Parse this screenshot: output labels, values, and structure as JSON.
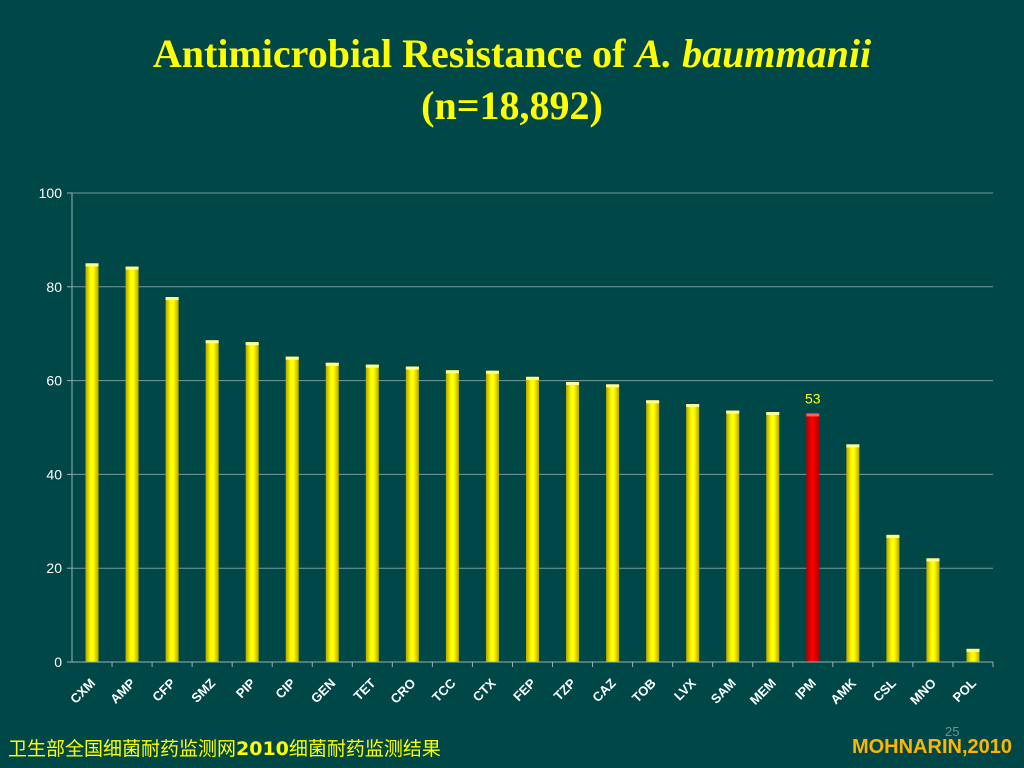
{
  "title": {
    "line1_prefix": "Antimicrobial Resistance of ",
    "genus": "A.",
    "species": "baummanii",
    "line2": "(n=18,892)"
  },
  "footer": {
    "left_a": "卫生部全国细菌耐药监测网",
    "left_year": "2010",
    "left_b": "细菌耐药监测结果",
    "right": "MOHNARIN,2010",
    "page_number": "25"
  },
  "colors": {
    "background": "#004848",
    "bar": "#FFFF00",
    "highlight_bar": "#FF0000",
    "title": "#FFFF00",
    "axis_text": "#FFFFFF",
    "highlight_label": "#FFFF00",
    "footer_right": "#FFB400"
  },
  "chart_data": {
    "type": "bar",
    "categories": [
      "CXM",
      "AMP",
      "CFP",
      "SMZ",
      "PIP",
      "CIP",
      "GEN",
      "TET",
      "CRO",
      "TCC",
      "CTX",
      "FEP",
      "TZP",
      "CAZ",
      "TOB",
      "LVX",
      "SAM",
      "MEM",
      "IPM",
      "AMK",
      "CSL",
      "MNO",
      "POL"
    ],
    "values": [
      85,
      84.3,
      77.8,
      68.6,
      68.2,
      65.1,
      63.8,
      63.4,
      63,
      62.2,
      62.1,
      60.8,
      59.7,
      59.2,
      55.8,
      55,
      53.6,
      53.3,
      53,
      46.4,
      27.1,
      22.1,
      2.8
    ],
    "highlight_index": 18,
    "data_labels": [
      {
        "index": 18,
        "text": "53"
      }
    ],
    "ylim": [
      0,
      100
    ],
    "yticks": [
      0,
      20,
      40,
      60,
      80,
      100
    ],
    "grid": true,
    "legend": "none",
    "xlabel": "",
    "ylabel": ""
  }
}
